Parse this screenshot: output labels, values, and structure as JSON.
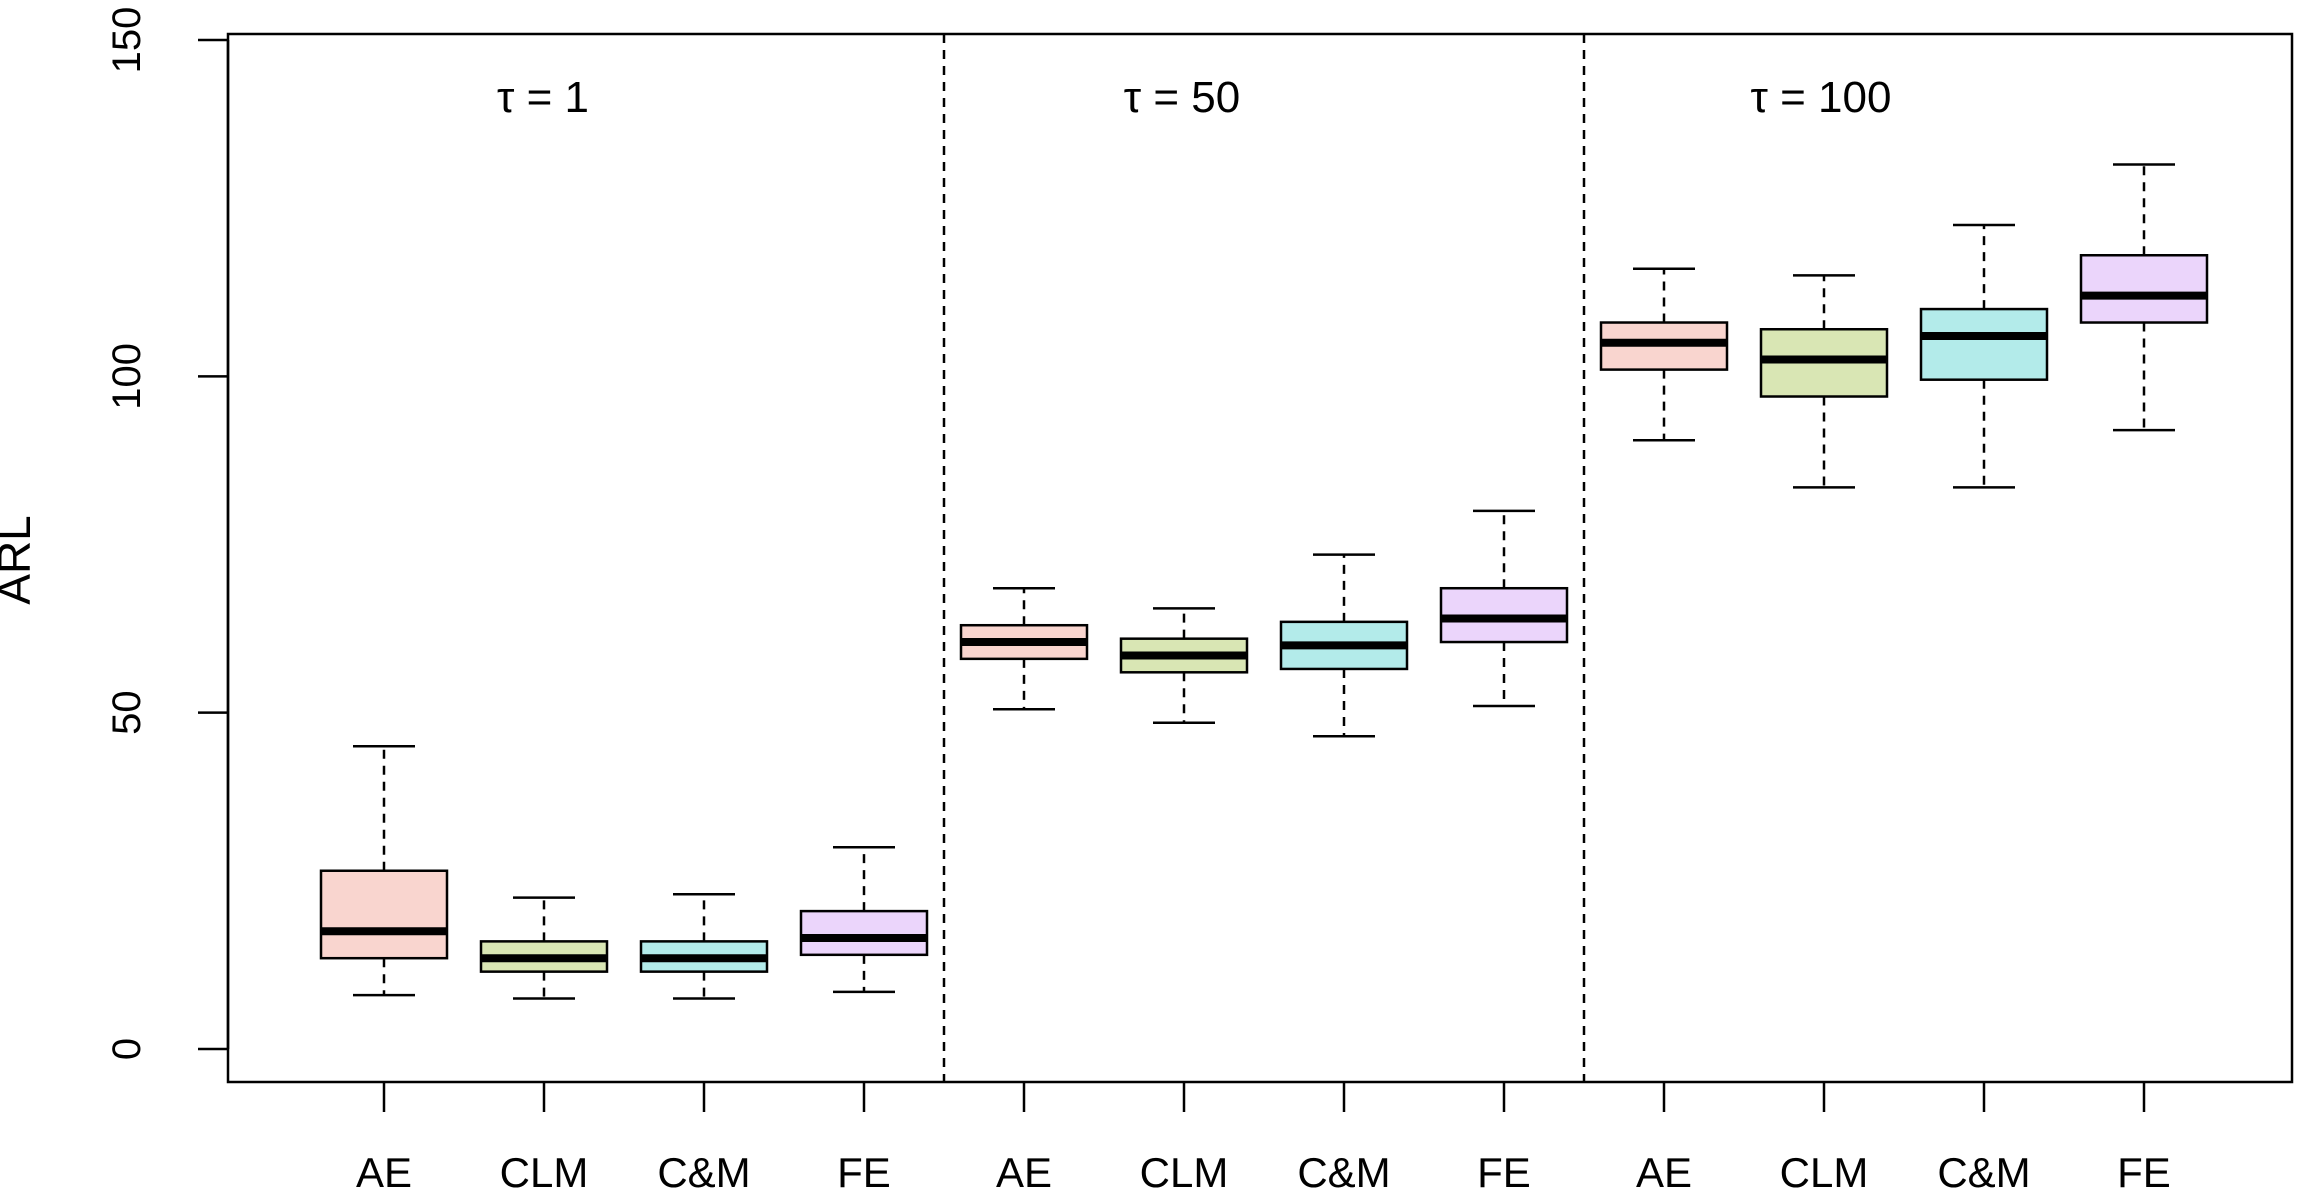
{
  "chart_data": {
    "type": "boxplot",
    "ylabel": "ARL",
    "ylim": [
      -5,
      150
    ],
    "yticks": [
      0,
      50,
      100,
      150
    ],
    "xticks": [
      "AE",
      "CLM",
      "C&M",
      "FE",
      "AE",
      "CLM",
      "C&M",
      "FE",
      "AE",
      "CLM",
      "C&M",
      "FE"
    ],
    "groups": [
      {
        "label": "τ = 1"
      },
      {
        "label": "τ = 50"
      },
      {
        "label": "τ = 100"
      }
    ],
    "colors": {
      "AE": "#f9d5cf",
      "CLM": "#d9e6b4",
      "C&M": "#b3ebea",
      "FE": "#ebd5fb"
    },
    "boxes": [
      {
        "category": "AE",
        "group": 0,
        "min": 8,
        "q1": 13.5,
        "median": 17.5,
        "q3": 26.5,
        "max": 45
      },
      {
        "category": "CLM",
        "group": 0,
        "min": 7.5,
        "q1": 11.5,
        "median": 13.5,
        "q3": 16,
        "max": 22.5
      },
      {
        "category": "C&M",
        "group": 0,
        "min": 7.5,
        "q1": 11.5,
        "median": 13.5,
        "q3": 16,
        "max": 23
      },
      {
        "category": "FE",
        "group": 0,
        "min": 8.5,
        "q1": 14,
        "median": 16.5,
        "q3": 20.5,
        "max": 30
      },
      {
        "category": "AE",
        "group": 1,
        "min": 50.5,
        "q1": 58,
        "median": 60.5,
        "q3": 63,
        "max": 68.5
      },
      {
        "category": "CLM",
        "group": 1,
        "min": 48.5,
        "q1": 56,
        "median": 58.5,
        "q3": 61,
        "max": 65.5
      },
      {
        "category": "C&M",
        "group": 1,
        "min": 46.5,
        "q1": 56.5,
        "median": 60,
        "q3": 63.5,
        "max": 73.5
      },
      {
        "category": "FE",
        "group": 1,
        "min": 51,
        "q1": 60.5,
        "median": 64,
        "q3": 68.5,
        "max": 80
      },
      {
        "category": "AE",
        "group": 2,
        "min": 90.5,
        "q1": 101,
        "median": 105,
        "q3": 108,
        "max": 116
      },
      {
        "category": "CLM",
        "group": 2,
        "min": 83.5,
        "q1": 97,
        "median": 102.5,
        "q3": 107,
        "max": 115
      },
      {
        "category": "C&M",
        "group": 2,
        "min": 83.5,
        "q1": 99.5,
        "median": 106,
        "q3": 110,
        "max": 122.5
      },
      {
        "category": "FE",
        "group": 2,
        "min": 92,
        "q1": 108,
        "median": 112,
        "q3": 118,
        "max": 131.5
      }
    ]
  }
}
